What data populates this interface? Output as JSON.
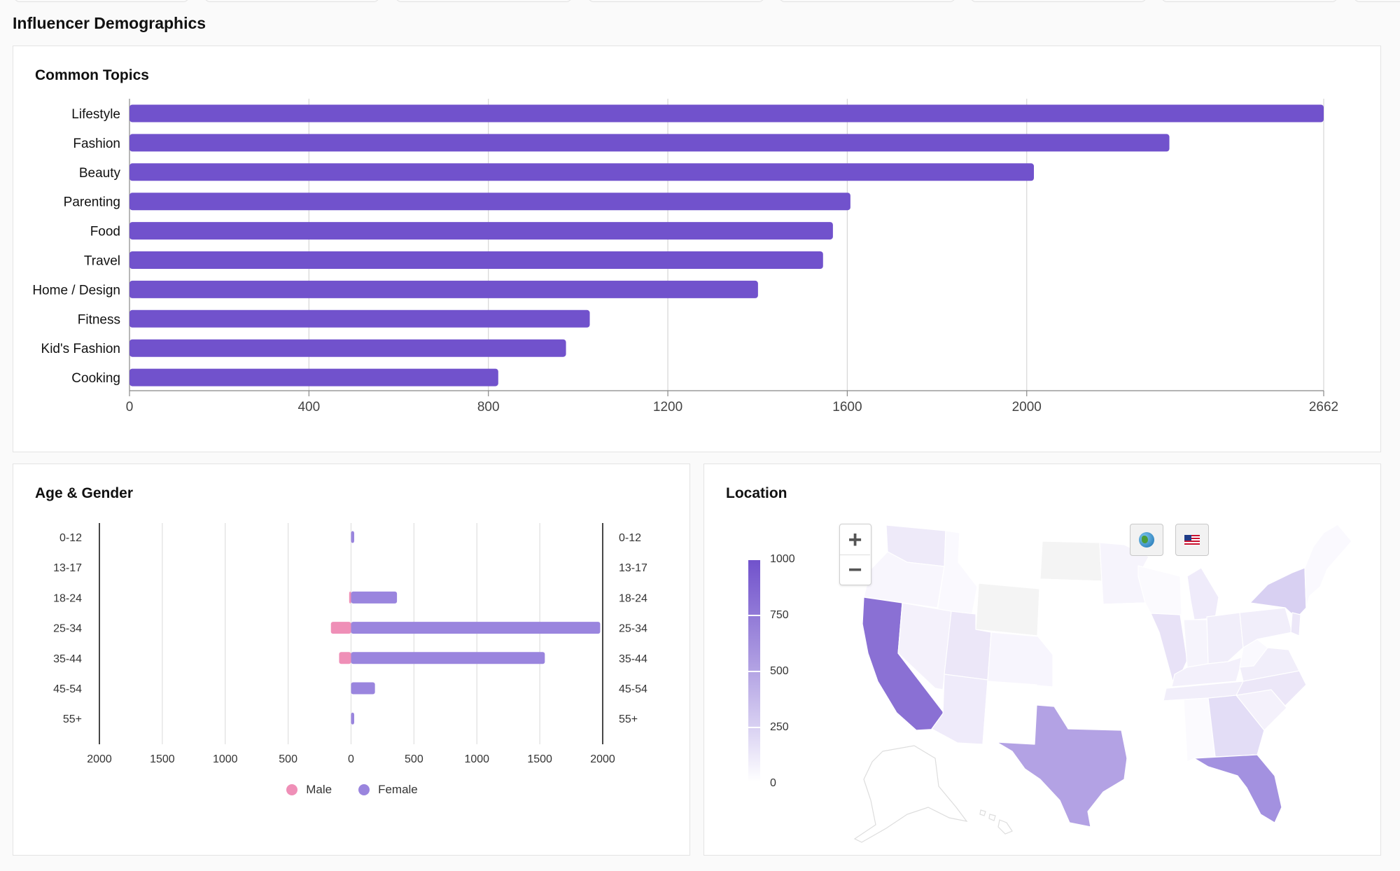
{
  "page": {
    "section_title": "Influencer Demographics"
  },
  "colors": {
    "bar": "#7152cc",
    "female": "#9a85de",
    "male": "#ef8fb7",
    "grid": "#d6d6d6"
  },
  "topics": {
    "title": "Common Topics",
    "chart_data": {
      "type": "bar",
      "orientation": "horizontal",
      "categories": [
        "Lifestyle",
        "Fashion",
        "Beauty",
        "Parenting",
        "Food",
        "Travel",
        "Home / Design",
        "Fitness",
        "Kid's Fashion",
        "Cooking"
      ],
      "values": [
        2662,
        2318,
        2016,
        1607,
        1568,
        1546,
        1401,
        1026,
        973,
        822
      ],
      "xlim": [
        0,
        2662
      ],
      "xticks": [
        0,
        400,
        800,
        1200,
        1600,
        2000,
        2662
      ],
      "grid": true
    }
  },
  "age_gender": {
    "title": "Age & Gender",
    "legend": {
      "male": "Male",
      "female": "Female"
    },
    "chart_data": {
      "type": "bar",
      "orientation": "horizontal-diverging",
      "categories": [
        "0-12",
        "13-17",
        "18-24",
        "25-34",
        "35-44",
        "45-54",
        "55+"
      ],
      "series": [
        {
          "name": "Male",
          "values": [
            0,
            0,
            15,
            160,
            95,
            0,
            0
          ]
        },
        {
          "name": "Female",
          "values": [
            25,
            0,
            365,
            1980,
            1540,
            190,
            25
          ]
        }
      ],
      "xlim": [
        -2000,
        2000
      ],
      "xtick_labels": [
        "2000",
        "1500",
        "1000",
        "500",
        "0",
        "500",
        "1000",
        "1500",
        "2000"
      ],
      "grid": true
    }
  },
  "location": {
    "title": "Location",
    "zoom_in_label": "+",
    "zoom_out_label": "−",
    "world_button": "world-view",
    "us_button": "us-view",
    "scale": {
      "labels": [
        "1000",
        "750",
        "500",
        "250",
        "0"
      ],
      "min": 0,
      "max": 1000
    }
  }
}
